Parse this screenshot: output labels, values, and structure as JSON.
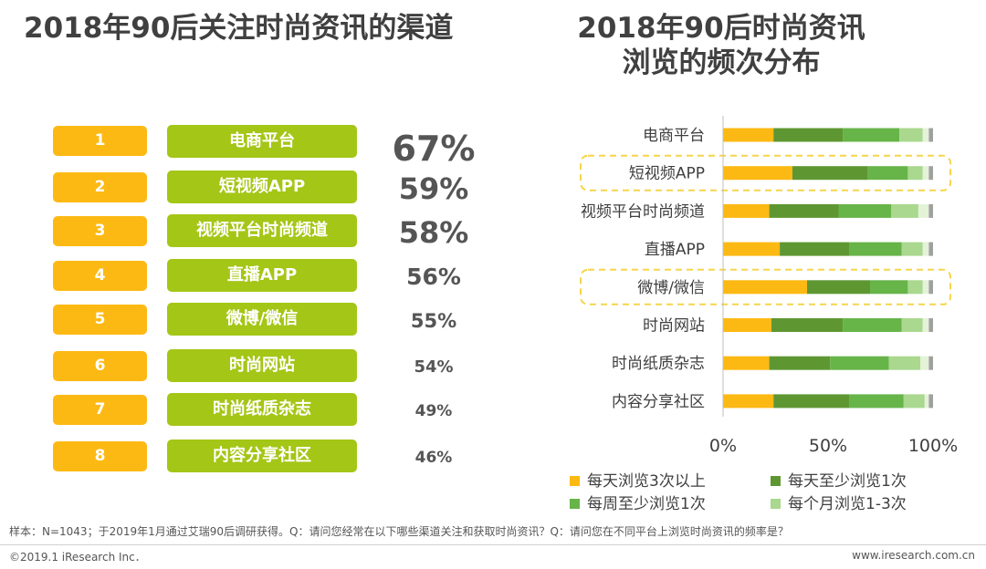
{
  "left_title": "2018年90后关注时尚资讯的渠道",
  "right_title_line1": "2018年90后时尚资讯",
  "right_title_line2": "浏览的频次分布",
  "channels": [
    {
      "rank": "1",
      "name": "电商平台",
      "value": "67%"
    },
    {
      "rank": "2",
      "name": "短视频APP",
      "value": "59%"
    },
    {
      "rank": "3",
      "name": "视频平台时尚频道",
      "value": "58%"
    },
    {
      "rank": "4",
      "name": "直播APP",
      "value": "56%"
    },
    {
      "rank": "5",
      "name": "微博/微信",
      "value": "55%"
    },
    {
      "rank": "6",
      "name": "时尚网站",
      "value": "54%"
    },
    {
      "rank": "7",
      "name": "时尚纸质杂志",
      "value": "49%"
    },
    {
      "rank": "8",
      "name": "内容分享社区",
      "value": "46%"
    }
  ],
  "chart_data": {
    "type": "bar",
    "orientation": "horizontal",
    "stacked": true,
    "title": "2018年90后时尚资讯浏览的频次分布",
    "categories": [
      "电商平台",
      "短视频APP",
      "视频平台时尚频道",
      "直播APP",
      "微博/微信",
      "时尚网站",
      "时尚纸质杂志",
      "内容分享社区"
    ],
    "highlighted": [
      "短视频APP",
      "微博/微信"
    ],
    "series": [
      {
        "name": "每天浏览3次以上",
        "color": "#fdb913",
        "values": [
          24,
          33,
          22,
          27,
          40,
          23,
          22,
          24
        ]
      },
      {
        "name": "每天至少浏览1次",
        "color": "#5e9732",
        "values": [
          33,
          36,
          33,
          33,
          30,
          34,
          29,
          36
        ]
      },
      {
        "name": "每周至少浏览1次",
        "color": "#67b449",
        "values": [
          27,
          19,
          25,
          25,
          18,
          28,
          28,
          26
        ]
      },
      {
        "name": "每个月浏览1-3次",
        "color": "#a9d88e",
        "values": [
          11,
          7,
          13,
          10,
          7,
          10,
          15,
          10
        ]
      },
      {
        "name": "",
        "color": "#e4f2d8",
        "values": [
          3,
          3,
          5,
          3,
          3,
          3,
          4,
          2
        ]
      },
      {
        "name": "",
        "color": "#a0a0a0",
        "values": [
          2,
          2,
          2,
          2,
          2,
          2,
          2,
          2
        ]
      }
    ],
    "xticks": [
      "0%",
      "50%",
      "100%"
    ],
    "xlim": [
      0,
      100
    ]
  },
  "footnote": "样本：N=1043；于2019年1月通过艾瑞90后调研获得。Q：请问您经常在以下哪些渠道关注和获取时尚资讯？Q：请问您在不同平台上浏览时尚资讯的频率是？",
  "copyright": "©2019.1 iResearch Inc．",
  "website": "www.iresearch.com.cn"
}
